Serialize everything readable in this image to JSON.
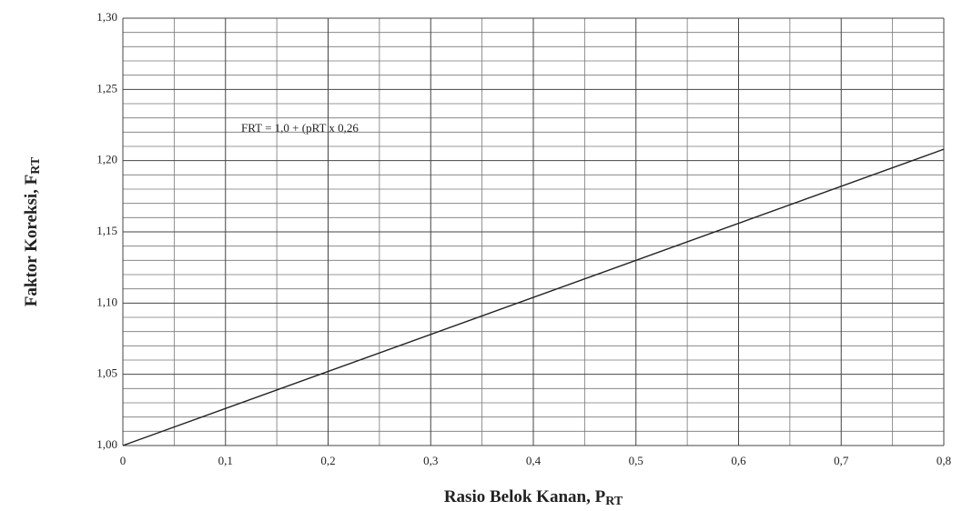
{
  "chart_data": {
    "type": "line",
    "xlabel": "Rasio Belok Kanan, P",
    "xlabel_sub": "RT",
    "ylabel": "Faktor Koreksi, F",
    "ylabel_sub": "RT",
    "annotation": "FRT = 1,0 + (pRT x 0,26",
    "x": [
      0,
      0.8
    ],
    "series": [
      {
        "color": "#222222",
        "values": [
          1.0,
          1.208
        ]
      }
    ],
    "xlim": [
      0,
      0.8
    ],
    "xticks": [
      0,
      {
        "value": 0.1,
        "label": "0,1"
      },
      {
        "value": 0.2,
        "label": "0,2"
      },
      {
        "value": 0.3,
        "label": "0,3"
      },
      {
        "value": 0.4,
        "label": "0,4"
      },
      {
        "value": 0.5,
        "label": "0,5"
      },
      {
        "value": 0.6,
        "label": "0,6"
      },
      {
        "value": 0.7,
        "label": "0,7"
      },
      {
        "value": 0.8,
        "label": "0,8"
      }
    ],
    "xminorticks": [
      0.05,
      0.15,
      0.25,
      0.35,
      0.45,
      0.55,
      0.65,
      0.75
    ],
    "ylim": [
      1.0,
      1.3
    ],
    "yticks": [
      {
        "value": 1.0,
        "label": "1,00"
      },
      {
        "value": 1.05,
        "label": "1,05"
      },
      {
        "value": 1.1,
        "label": "1,10"
      },
      {
        "value": 1.15,
        "label": "1,15"
      },
      {
        "value": 1.2,
        "label": "1,20"
      },
      {
        "value": 1.25,
        "label": "1,25"
      },
      {
        "value": 1.3,
        "label": "1,30"
      }
    ],
    "yminorticks": [
      1.01,
      1.02,
      1.03,
      1.04,
      1.06,
      1.07,
      1.08,
      1.09,
      1.11,
      1.12,
      1.13,
      1.14,
      1.16,
      1.17,
      1.18,
      1.19,
      1.21,
      1.22,
      1.23,
      1.24,
      1.26,
      1.27,
      1.28,
      1.29
    ],
    "grid": true
  }
}
